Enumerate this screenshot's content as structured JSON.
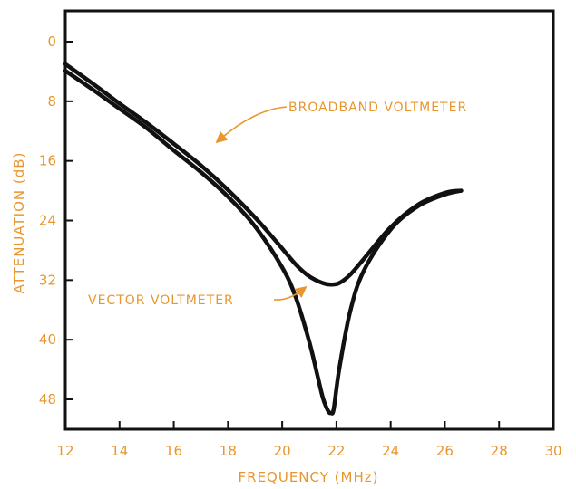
{
  "chart_data": {
    "type": "line",
    "title": "",
    "xlabel": "FREQUENCY (MHz)",
    "ylabel": "ATTENUATION (dB)",
    "xlim": [
      12,
      30
    ],
    "ylim": [
      0,
      52
    ],
    "y_inverted": true,
    "grid": false,
    "xticks": [
      12,
      14,
      16,
      18,
      20,
      22,
      24,
      26,
      28,
      30
    ],
    "yticks": [
      0,
      8,
      16,
      24,
      32,
      40,
      48
    ],
    "colors": {
      "text": "#e8962e",
      "line": "#111111",
      "frame": "#111111"
    },
    "series": [
      {
        "name": "BROADBAND VOLTMETER",
        "x": [
          12,
          13,
          14,
          15,
          16,
          17,
          18,
          19,
          19.8,
          20.5,
          21.0,
          21.5,
          21.8,
          22.1,
          22.5,
          23.0,
          24.0,
          25.0,
          26.0,
          26.6
        ],
        "y": [
          3.0,
          5.6,
          8.3,
          10.9,
          13.7,
          16.6,
          19.9,
          23.6,
          26.9,
          29.9,
          31.5,
          32.4,
          32.6,
          32.4,
          31.3,
          29.2,
          24.9,
          21.9,
          20.3,
          20.0
        ]
      },
      {
        "name": "VECTOR VOLTMETER",
        "x": [
          12,
          13,
          14,
          15,
          16,
          17,
          18,
          19,
          20.0,
          20.5,
          21.0,
          21.3,
          21.5,
          21.7,
          21.8,
          21.9,
          22.1,
          22.5,
          23.0,
          24.0,
          25.0,
          26.0,
          26.6
        ],
        "y": [
          3.9,
          6.4,
          9.0,
          11.6,
          14.6,
          17.5,
          20.8,
          24.8,
          30.3,
          34.3,
          40.3,
          44.8,
          47.8,
          49.6,
          49.8,
          49.3,
          44.0,
          36.3,
          30.8,
          25.2,
          22.1,
          20.5,
          20.0
        ]
      }
    ],
    "annotations": [
      {
        "text": "BROADBAND VOLTMETER",
        "points_to_series": 0
      },
      {
        "text": "VECTOR VOLTMETER",
        "points_to_series": 1
      }
    ]
  }
}
